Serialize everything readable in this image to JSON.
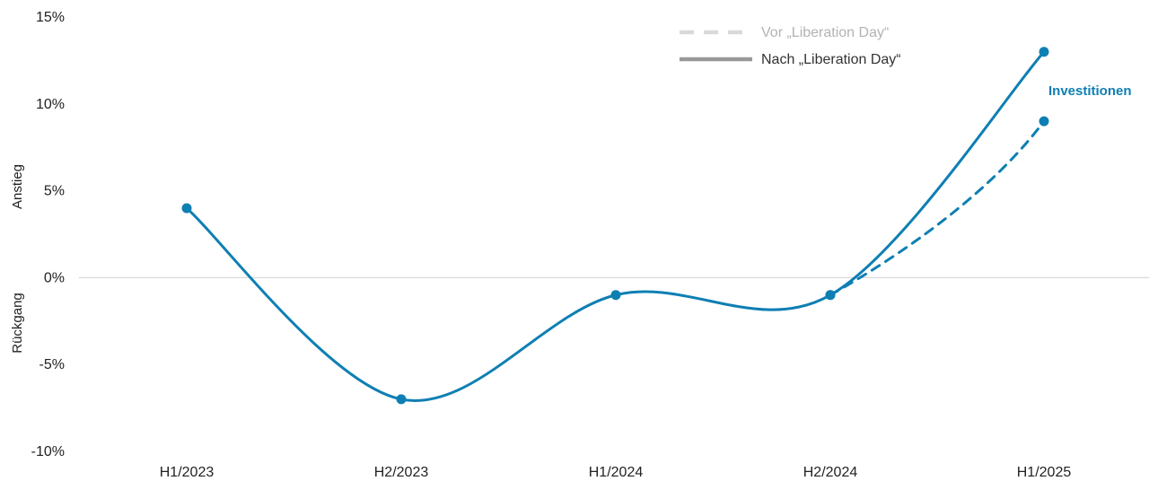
{
  "chart_data": {
    "type": "line",
    "categories": [
      "H1/2023",
      "H2/2023",
      "H1/2024",
      "H2/2024",
      "H1/2025"
    ],
    "ylim": [
      -10,
      15
    ],
    "yticks": [
      15,
      10,
      5,
      0,
      -5,
      -10
    ],
    "ytick_labels": [
      "15%",
      "10%",
      "5%",
      "0%",
      "-5%",
      "-10%"
    ],
    "ylabel_upper": "Anstieg",
    "ylabel_lower": "Rückgang",
    "zero_line": true,
    "series": [
      {
        "name": "Investitionen",
        "scenario": "Nach „Liberation Day“",
        "style": "solid",
        "values": [
          4,
          -7,
          -1,
          -1,
          13
        ]
      },
      {
        "name": "Investitionen",
        "scenario": "Vor „Liberation Day“",
        "style": "dashed",
        "values": [
          null,
          null,
          null,
          -1,
          9
        ]
      }
    ],
    "series_label": "Investitionen",
    "legend": {
      "placement": "top-right",
      "items": [
        {
          "label": "Vor „Liberation Day“",
          "style": "dashed",
          "color": "#d9d9d9",
          "text_color": "#b3b3b3"
        },
        {
          "label": "Nach „Liberation Day“",
          "style": "solid",
          "color": "#999999",
          "text_color": "#333333"
        }
      ]
    },
    "colors": {
      "series": "#0e7fb3",
      "zero_line": "#d9d9d9",
      "axis_text": "#222222"
    }
  }
}
